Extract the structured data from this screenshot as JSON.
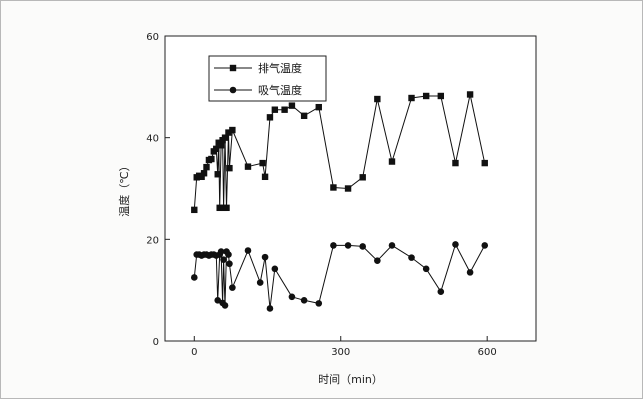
{
  "chart_data": {
    "type": "line",
    "xlabel": "时间（min）",
    "ylabel": "温度（℃）",
    "xlim": [
      -60,
      700
    ],
    "ylim": [
      0,
      60
    ],
    "xticks": [
      0,
      300,
      600
    ],
    "yticks": [
      0,
      20,
      40,
      60
    ],
    "legend_position": "top-left",
    "grid": false,
    "series": [
      {
        "name": "排气温度",
        "marker": "square",
        "color": "#111111",
        "points": [
          [
            0,
            25.8
          ],
          [
            5,
            32.2
          ],
          [
            10,
            32.5
          ],
          [
            15,
            32.3
          ],
          [
            20,
            33.0
          ],
          [
            25,
            34.2
          ],
          [
            30,
            35.6
          ],
          [
            35,
            35.8
          ],
          [
            40,
            37.3
          ],
          [
            45,
            37.8
          ],
          [
            48,
            32.8
          ],
          [
            50,
            39.0
          ],
          [
            52,
            26.2
          ],
          [
            55,
            38.5
          ],
          [
            58,
            39.5
          ],
          [
            60,
            26.2
          ],
          [
            63,
            40.0
          ],
          [
            66,
            26.2
          ],
          [
            70,
            41.0
          ],
          [
            72,
            34.0
          ],
          [
            78,
            41.5
          ],
          [
            110,
            34.3
          ],
          [
            140,
            35.0
          ],
          [
            145,
            32.3
          ],
          [
            155,
            44.0
          ],
          [
            165,
            45.5
          ],
          [
            185,
            45.5
          ],
          [
            200,
            46.3
          ],
          [
            225,
            44.3
          ],
          [
            255,
            46.0
          ],
          [
            285,
            30.2
          ],
          [
            315,
            30.0
          ],
          [
            345,
            32.2
          ],
          [
            375,
            47.6
          ],
          [
            405,
            35.3
          ],
          [
            445,
            47.8
          ],
          [
            475,
            48.2
          ],
          [
            505,
            48.2
          ],
          [
            535,
            35.0
          ],
          [
            565,
            48.5
          ],
          [
            595,
            35.0
          ]
        ]
      },
      {
        "name": "吸气温度",
        "marker": "circle",
        "color": "#111111",
        "points": [
          [
            0,
            12.5
          ],
          [
            5,
            17.0
          ],
          [
            10,
            17.0
          ],
          [
            15,
            16.8
          ],
          [
            20,
            17.0
          ],
          [
            25,
            17.0
          ],
          [
            30,
            16.8
          ],
          [
            35,
            17.0
          ],
          [
            40,
            17.0
          ],
          [
            45,
            16.8
          ],
          [
            48,
            8.0
          ],
          [
            52,
            17.0
          ],
          [
            55,
            17.6
          ],
          [
            58,
            7.5
          ],
          [
            60,
            16.0
          ],
          [
            63,
            7.0
          ],
          [
            66,
            17.6
          ],
          [
            70,
            17.0
          ],
          [
            72,
            15.2
          ],
          [
            78,
            10.5
          ],
          [
            110,
            17.8
          ],
          [
            135,
            11.5
          ],
          [
            145,
            16.5
          ],
          [
            155,
            6.4
          ],
          [
            165,
            14.2
          ],
          [
            200,
            8.7
          ],
          [
            225,
            8.0
          ],
          [
            255,
            7.4
          ],
          [
            285,
            18.8
          ],
          [
            315,
            18.8
          ],
          [
            345,
            18.6
          ],
          [
            375,
            15.8
          ],
          [
            405,
            18.8
          ],
          [
            445,
            16.4
          ],
          [
            475,
            14.2
          ],
          [
            505,
            9.7
          ],
          [
            535,
            19.0
          ],
          [
            565,
            13.5
          ],
          [
            595,
            18.8
          ]
        ]
      }
    ]
  }
}
